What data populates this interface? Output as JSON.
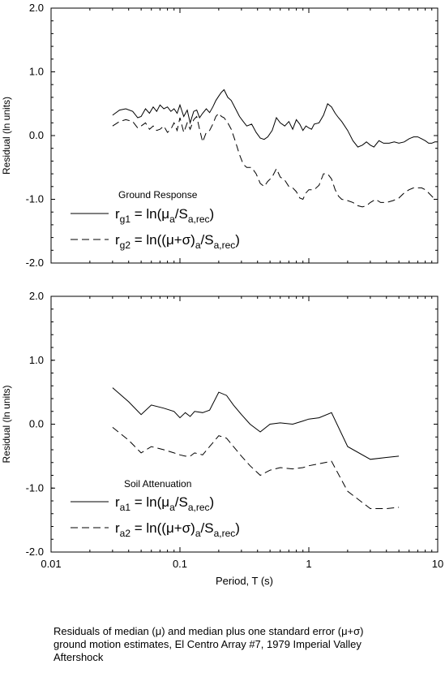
{
  "chart_data": [
    {
      "type": "line",
      "panel": "top",
      "annotation": "Ground Response",
      "ylabel": "Residual (ln units)",
      "xlabel": "",
      "xscale": "log",
      "xlim": [
        0.01,
        10
      ],
      "ylim": [
        -2.0,
        2.0
      ],
      "yticks": [
        "2.0",
        "1.0",
        "0.0",
        "-1.0",
        "-2.0"
      ],
      "yticks_values": [
        2.0,
        1.0,
        0.0,
        -1.0,
        -2.0
      ],
      "grid": false,
      "legend_position": "lower-left",
      "series": [
        {
          "name_main": "r",
          "name_sub": "g1",
          "formula": "= ln(μ",
          "formula_sub": "a",
          "formula_tail": "/S",
          "formula_tail_sub": "a,rec",
          "formula_close": ")",
          "style": "solid",
          "x": [
            0.03,
            0.034,
            0.038,
            0.043,
            0.047,
            0.05,
            0.054,
            0.058,
            0.062,
            0.066,
            0.07,
            0.075,
            0.08,
            0.085,
            0.09,
            0.095,
            0.1,
            0.107,
            0.114,
            0.12,
            0.128,
            0.135,
            0.142,
            0.15,
            0.16,
            0.17,
            0.18,
            0.19,
            0.2,
            0.21,
            0.22,
            0.235,
            0.25,
            0.27,
            0.29,
            0.31,
            0.33,
            0.36,
            0.39,
            0.42,
            0.45,
            0.48,
            0.52,
            0.56,
            0.6,
            0.65,
            0.7,
            0.75,
            0.8,
            0.85,
            0.9,
            0.95,
            1.0,
            1.05,
            1.1,
            1.2,
            1.3,
            1.4,
            1.5,
            1.6,
            1.7,
            1.8,
            2.0,
            2.2,
            2.4,
            2.6,
            2.8,
            3.0,
            3.2,
            3.5,
            3.8,
            4.2,
            4.6,
            5.0,
            5.5,
            6.0,
            6.5,
            7.0,
            7.5,
            8.0,
            8.5,
            9.0,
            9.5,
            10.0
          ],
          "y": [
            0.32,
            0.4,
            0.42,
            0.38,
            0.28,
            0.3,
            0.42,
            0.35,
            0.45,
            0.38,
            0.48,
            0.42,
            0.45,
            0.38,
            0.42,
            0.35,
            0.48,
            0.3,
            0.4,
            0.2,
            0.38,
            0.4,
            0.28,
            0.35,
            0.42,
            0.36,
            0.45,
            0.55,
            0.62,
            0.68,
            0.72,
            0.6,
            0.55,
            0.42,
            0.3,
            0.22,
            0.15,
            0.18,
            0.05,
            -0.04,
            -0.06,
            -0.02,
            0.08,
            0.28,
            0.2,
            0.15,
            0.22,
            0.1,
            0.25,
            0.18,
            0.08,
            0.15,
            0.12,
            0.1,
            0.18,
            0.2,
            0.32,
            0.5,
            0.45,
            0.35,
            0.28,
            0.22,
            0.08,
            -0.08,
            -0.18,
            -0.15,
            -0.1,
            -0.15,
            -0.18,
            -0.08,
            -0.12,
            -0.12,
            -0.1,
            -0.12,
            -0.1,
            -0.05,
            -0.02,
            -0.02,
            -0.05,
            -0.08,
            -0.12,
            -0.12,
            -0.1,
            -0.1
          ]
        },
        {
          "name_main": "r",
          "name_sub": "g2",
          "formula": "= ln((μ+σ)",
          "formula_sub": "a",
          "formula_tail": "/S",
          "formula_tail_sub": "a,rec",
          "formula_close": ")",
          "style": "dashed",
          "x": [
            0.03,
            0.034,
            0.038,
            0.043,
            0.047,
            0.05,
            0.054,
            0.058,
            0.062,
            0.066,
            0.07,
            0.075,
            0.08,
            0.085,
            0.09,
            0.095,
            0.1,
            0.107,
            0.114,
            0.12,
            0.128,
            0.135,
            0.142,
            0.15,
            0.16,
            0.17,
            0.18,
            0.19,
            0.2,
            0.21,
            0.22,
            0.235,
            0.25,
            0.27,
            0.29,
            0.31,
            0.33,
            0.36,
            0.39,
            0.42,
            0.45,
            0.48,
            0.52,
            0.56,
            0.6,
            0.65,
            0.7,
            0.75,
            0.8,
            0.85,
            0.9,
            0.95,
            1.0,
            1.1,
            1.2,
            1.3,
            1.4,
            1.5,
            1.6,
            1.7,
            1.8,
            2.0,
            2.2,
            2.4,
            2.6,
            2.8,
            3.0,
            3.3,
            3.6,
            4.0,
            4.5,
            5.0,
            5.5,
            6.0,
            6.5,
            7.0,
            7.5,
            8.0,
            8.5,
            9.0,
            9.5,
            10.0
          ],
          "y": [
            0.15,
            0.22,
            0.25,
            0.22,
            0.12,
            0.15,
            0.2,
            0.1,
            0.15,
            0.08,
            0.1,
            0.15,
            0.05,
            0.1,
            0.2,
            0.08,
            0.28,
            0.05,
            0.2,
            0.1,
            0.25,
            0.3,
            0.1,
            -0.1,
            0.05,
            0.08,
            0.18,
            0.3,
            0.35,
            0.3,
            0.28,
            0.2,
            0.1,
            -0.1,
            -0.3,
            -0.45,
            -0.5,
            -0.5,
            -0.6,
            -0.75,
            -0.8,
            -0.72,
            -0.65,
            -0.52,
            -0.65,
            -0.7,
            -0.8,
            -0.82,
            -0.88,
            -0.98,
            -1.0,
            -0.9,
            -0.85,
            -0.85,
            -0.78,
            -0.6,
            -0.6,
            -0.68,
            -0.85,
            -0.95,
            -1.0,
            -1.02,
            -1.05,
            -1.1,
            -1.12,
            -1.1,
            -1.05,
            -1.0,
            -1.05,
            -1.05,
            -1.02,
            -0.98,
            -0.9,
            -0.85,
            -0.82,
            -0.82,
            -0.82,
            -0.85,
            -0.9,
            -0.95,
            -1.0,
            -1.0
          ]
        }
      ]
    },
    {
      "type": "line",
      "panel": "bottom",
      "annotation": "Soil Attenuation",
      "ylabel": "Residual (ln units)",
      "xlabel": "Period, T (s)",
      "xscale": "log",
      "xlim": [
        0.01,
        10
      ],
      "xticks": [
        "0.01",
        "0.1",
        "1",
        "10"
      ],
      "xticks_values": [
        0.01,
        0.1,
        1,
        10
      ],
      "ylim": [
        -2.0,
        2.0
      ],
      "yticks": [
        "2.0",
        "1.0",
        "0.0",
        "-1.0",
        "-2.0"
      ],
      "yticks_values": [
        2.0,
        1.0,
        0.0,
        -1.0,
        -2.0
      ],
      "grid": false,
      "legend_position": "lower-left",
      "series": [
        {
          "name_main": "r",
          "name_sub": "a1",
          "formula": "= ln(μ",
          "formula_sub": "a",
          "formula_tail": "/S",
          "formula_tail_sub": "a,rec",
          "formula_close": ")",
          "style": "solid",
          "x": [
            0.03,
            0.04,
            0.05,
            0.06,
            0.075,
            0.09,
            0.1,
            0.11,
            0.12,
            0.13,
            0.15,
            0.17,
            0.2,
            0.23,
            0.26,
            0.3,
            0.35,
            0.42,
            0.5,
            0.6,
            0.75,
            0.9,
            1.0,
            1.2,
            1.5,
            2.0,
            3.0,
            4.0,
            5.0
          ],
          "y": [
            0.57,
            0.35,
            0.15,
            0.3,
            0.25,
            0.2,
            0.1,
            0.18,
            0.12,
            0.2,
            0.18,
            0.22,
            0.5,
            0.45,
            0.3,
            0.15,
            0.0,
            -0.12,
            0.0,
            0.02,
            0.0,
            0.05,
            0.08,
            0.1,
            0.18,
            -0.35,
            -0.55,
            -0.52,
            -0.5
          ]
        },
        {
          "name_main": "r",
          "name_sub": "a2",
          "formula": "= ln((μ+σ)",
          "formula_sub": "a",
          "formula_tail": "/S",
          "formula_tail_sub": "a,rec",
          "formula_close": ")",
          "style": "dashed",
          "x": [
            0.03,
            0.04,
            0.05,
            0.06,
            0.075,
            0.09,
            0.1,
            0.11,
            0.12,
            0.13,
            0.15,
            0.17,
            0.2,
            0.23,
            0.26,
            0.3,
            0.35,
            0.42,
            0.5,
            0.6,
            0.75,
            0.9,
            1.0,
            1.2,
            1.5,
            2.0,
            3.0,
            4.0,
            5.0
          ],
          "y": [
            -0.05,
            -0.25,
            -0.45,
            -0.35,
            -0.4,
            -0.45,
            -0.48,
            -0.5,
            -0.5,
            -0.45,
            -0.48,
            -0.35,
            -0.18,
            -0.22,
            -0.35,
            -0.5,
            -0.65,
            -0.8,
            -0.72,
            -0.68,
            -0.7,
            -0.68,
            -0.65,
            -0.62,
            -0.58,
            -1.05,
            -1.32,
            -1.32,
            -1.3
          ]
        }
      ]
    }
  ],
  "caption": {
    "line1": "Residuals of median (μ) and median plus one standard error (μ+σ)",
    "line2": "ground motion estimates, El Centro Array #7, 1979 Imperial Valley",
    "line3": "Aftershock"
  }
}
